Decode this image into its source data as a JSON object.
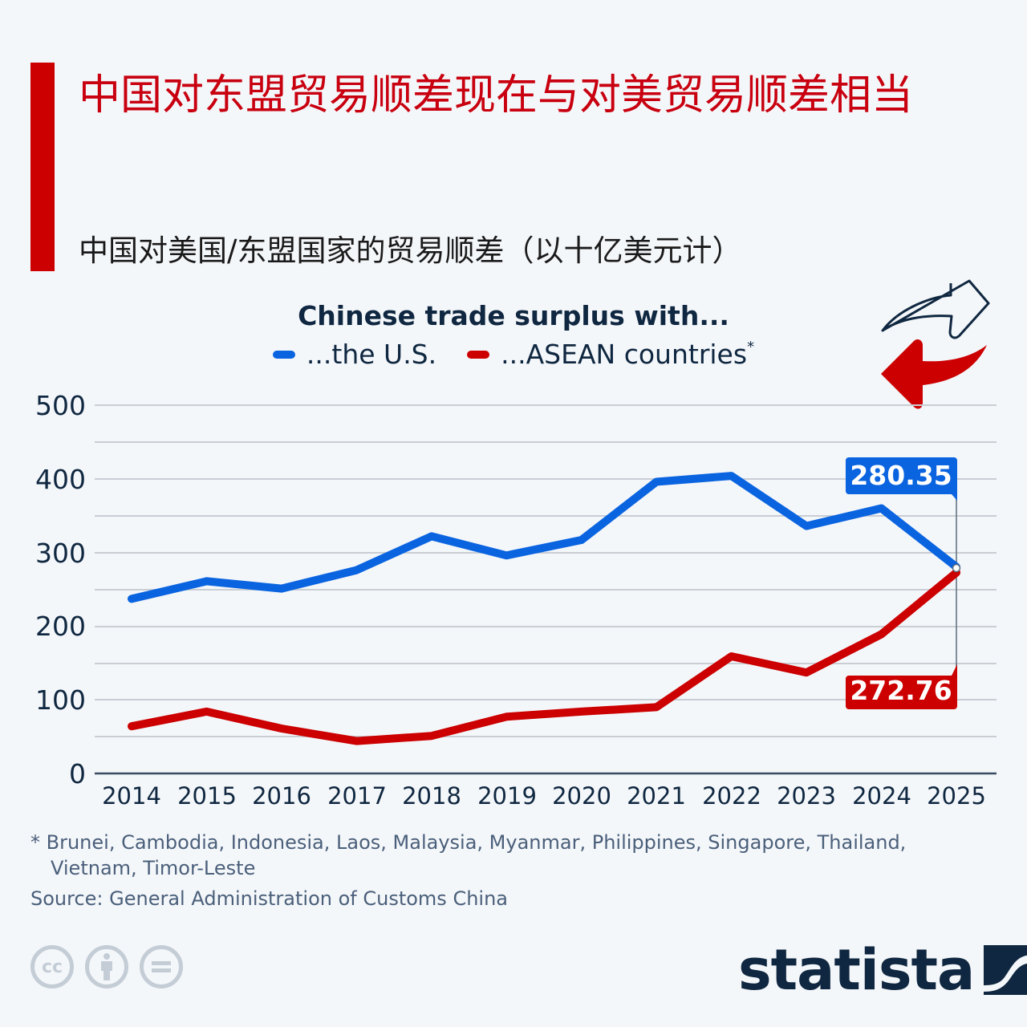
{
  "header": {
    "title": "中国对东盟贸易顺差现在与对美贸易顺差相当",
    "subtitle": "中国对美国/东盟国家的贸易顺差（以十亿美元计）"
  },
  "colors": {
    "accent": "#cc0000",
    "us_series": "#0a64e0",
    "asean_series": "#cc0000",
    "text_dark": "#0f2740",
    "grid": "#c9ced4"
  },
  "chart_data": {
    "type": "line",
    "title": "Chinese trade surplus with...",
    "xlabel": "",
    "ylabel": "",
    "ylim": [
      0,
      500
    ],
    "yticks": [
      0,
      100,
      200,
      300,
      400,
      500
    ],
    "grid": true,
    "legend_position": "top",
    "categories": [
      "2014",
      "2015",
      "2016",
      "2017",
      "2018",
      "2019",
      "2020",
      "2021",
      "2022",
      "2023",
      "2024",
      "2025"
    ],
    "series": [
      {
        "name": "...the U.S.",
        "color": "#0a64e0",
        "values": [
          237,
          261,
          251,
          276,
          322,
          296,
          317,
          396,
          404,
          336,
          360,
          280.35
        ]
      },
      {
        "name": "...ASEAN countries*",
        "color": "#cc0000",
        "values": [
          64,
          84,
          61,
          44,
          51,
          77,
          84,
          90,
          159,
          137,
          189,
          272.76
        ]
      }
    ],
    "annotations": [
      {
        "series": "...the U.S.",
        "x": "2025",
        "label": "280.35"
      },
      {
        "series": "...ASEAN countries*",
        "x": "2025",
        "label": "272.76"
      }
    ]
  },
  "legend": {
    "title": "Chinese trade surplus with...",
    "items": [
      {
        "label": "...the U.S.",
        "color": "#0a64e0"
      },
      {
        "label": "...ASEAN countries",
        "suffix": "*",
        "color": "#cc0000"
      }
    ]
  },
  "axes": {
    "y": [
      "0",
      "100",
      "200",
      "300",
      "400",
      "500"
    ],
    "x": [
      "2014",
      "2015",
      "2016",
      "2017",
      "2018",
      "2019",
      "2020",
      "2021",
      "2022",
      "2023",
      "2024",
      "2025"
    ]
  },
  "callouts": {
    "us": "280.35",
    "asean": "272.76"
  },
  "footer": {
    "footnote_line1": "* Brunei, Cambodia, Indonesia, Laos, Malaysia, Myanmar, Philippines, Singapore, Thailand,",
    "footnote_line2": "Vietnam, Timor-Leste",
    "source": "Source: General Administration of Customs China",
    "license_icons": [
      "cc-icon",
      "attribution-icon",
      "no-derivatives-icon"
    ],
    "cc_label": "cc",
    "brand": "statista"
  }
}
